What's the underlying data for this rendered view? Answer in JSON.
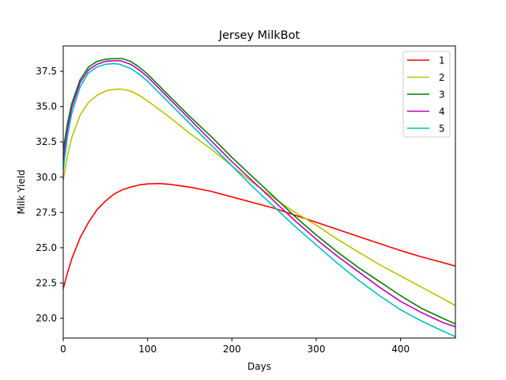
{
  "chart_data": {
    "type": "line",
    "title": "Jersey MilkBot",
    "xlabel": "Days",
    "ylabel": "Milk Yield",
    "xlim": [
      0,
      465
    ],
    "ylim": [
      18.6,
      39.3
    ],
    "xticks": [
      0,
      100,
      200,
      300,
      400
    ],
    "yticks": [
      20.0,
      22.5,
      25.0,
      27.5,
      30.0,
      32.5,
      35.0,
      37.5
    ],
    "grid": false,
    "legend_position": "top-right",
    "series": [
      {
        "name": "1",
        "color": "#ff0000",
        "x": [
          0,
          5,
          10,
          20,
          30,
          40,
          50,
          60,
          70,
          80,
          90,
          100,
          113,
          125,
          150,
          175,
          200,
          225,
          250,
          275,
          300,
          325,
          350,
          375,
          400,
          425,
          450,
          465
        ],
        "y": [
          22.1,
          23.2,
          24.2,
          25.7,
          26.8,
          27.7,
          28.3,
          28.8,
          29.1,
          29.3,
          29.45,
          29.52,
          29.55,
          29.5,
          29.3,
          29.0,
          28.6,
          28.2,
          27.8,
          27.3,
          26.8,
          26.3,
          25.8,
          25.3,
          24.8,
          24.35,
          23.95,
          23.7
        ]
      },
      {
        "name": "2",
        "color": "#bfbf00",
        "x": [
          0,
          5,
          10,
          20,
          30,
          40,
          50,
          60,
          68,
          80,
          90,
          100,
          125,
          150,
          175,
          200,
          225,
          250,
          275,
          300,
          325,
          350,
          375,
          400,
          425,
          450,
          465
        ],
        "y": [
          29.8,
          31.5,
          32.8,
          34.4,
          35.3,
          35.8,
          36.1,
          36.22,
          36.25,
          36.1,
          35.8,
          35.4,
          34.3,
          33.1,
          32.0,
          30.8,
          29.6,
          28.5,
          27.5,
          26.6,
          25.6,
          24.7,
          23.8,
          23.0,
          22.2,
          21.4,
          20.9
        ]
      },
      {
        "name": "3",
        "color": "#008000",
        "x": [
          0,
          5,
          10,
          20,
          30,
          40,
          50,
          60,
          70,
          80,
          90,
          100,
          125,
          150,
          175,
          200,
          225,
          250,
          275,
          300,
          325,
          350,
          375,
          400,
          425,
          450,
          465
        ],
        "y": [
          31.9,
          33.8,
          35.2,
          36.9,
          37.8,
          38.2,
          38.35,
          38.4,
          38.4,
          38.2,
          37.8,
          37.3,
          35.8,
          34.3,
          32.9,
          31.4,
          30.0,
          28.6,
          27.2,
          25.9,
          24.7,
          23.6,
          22.6,
          21.6,
          20.7,
          20.0,
          19.6
        ]
      },
      {
        "name": "4",
        "color": "#bf00bf",
        "x": [
          0,
          5,
          10,
          20,
          30,
          40,
          50,
          60,
          68,
          80,
          90,
          100,
          125,
          150,
          175,
          200,
          225,
          250,
          275,
          300,
          325,
          350,
          375,
          400,
          425,
          450,
          465
        ],
        "y": [
          31.2,
          33.4,
          34.9,
          36.7,
          37.6,
          38.0,
          38.2,
          38.25,
          38.25,
          38.0,
          37.6,
          37.1,
          35.6,
          34.1,
          32.6,
          31.1,
          29.7,
          28.3,
          26.9,
          25.6,
          24.4,
          23.3,
          22.2,
          21.2,
          20.4,
          19.7,
          19.4
        ]
      },
      {
        "name": "5",
        "color": "#00bfbf",
        "x": [
          0,
          5,
          10,
          20,
          30,
          40,
          50,
          60,
          67,
          80,
          90,
          100,
          125,
          150,
          175,
          200,
          225,
          250,
          275,
          300,
          325,
          350,
          375,
          400,
          425,
          450,
          465
        ],
        "y": [
          30.5,
          32.9,
          34.5,
          36.4,
          37.4,
          37.8,
          38.0,
          38.05,
          38.0,
          37.7,
          37.3,
          36.8,
          35.3,
          33.8,
          32.3,
          30.8,
          29.3,
          27.9,
          26.5,
          25.2,
          23.9,
          22.7,
          21.6,
          20.6,
          19.8,
          19.1,
          18.7
        ]
      }
    ]
  }
}
